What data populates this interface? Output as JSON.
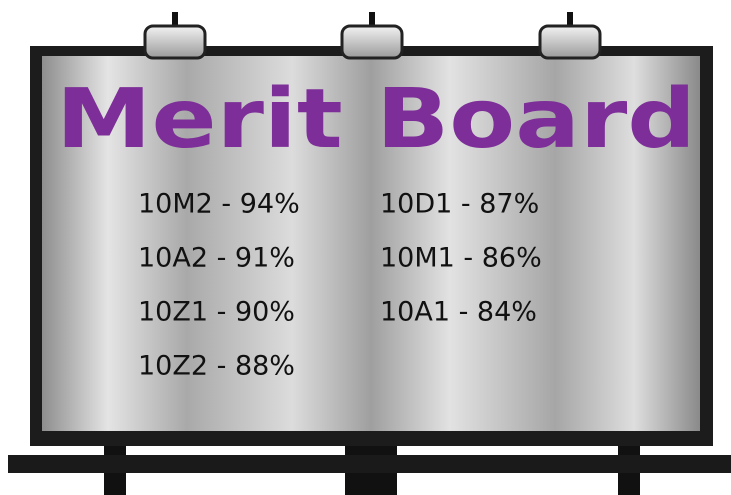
{
  "board": {
    "title": "Merit Board",
    "columns": [
      [
        "10M2 - 94%",
        "10A2 - 91%",
        "10Z1 - 90%",
        "10Z2 - 88%"
      ],
      [
        "10D1 - 87%",
        "10M1 - 86%",
        "10A1 - 84%"
      ]
    ]
  }
}
